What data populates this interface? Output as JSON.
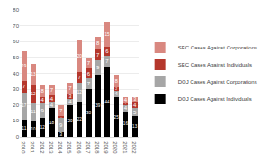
{
  "chart_data": {
    "type": "bar",
    "stacked": true,
    "data_labels": true,
    "grid": true,
    "legend": "right",
    "categories": [
      "2010",
      "2011",
      "2012",
      "2013",
      "2014",
      "2015",
      "2016",
      "2017",
      "2018",
      "2019",
      "2020",
      "2021",
      "2022"
    ],
    "ylim": [
      0,
      80
    ],
    "yticks": [
      0,
      10,
      20,
      30,
      40,
      50,
      60,
      70,
      80
    ],
    "series": [
      {
        "name": "DOJ Cases Against Individuals",
        "color": "#000000",
        "values": [
          11,
          10,
          12,
          18,
          3,
          20,
          22,
          30,
          39,
          44,
          25,
          16,
          13
        ]
      },
      {
        "name": "DOJ Cases Against Corporations",
        "color": "#a6a6a6",
        "values": [
          17,
          11,
          9,
          4,
          9,
          4,
          12,
          7,
          9,
          7,
          4,
          4,
          5
        ]
      },
      {
        "name": "SEC Cases Against Individuals",
        "color": "#b5372c",
        "values": [
          7,
          12,
          4,
          4,
          1,
          3,
          7,
          6,
          7,
          6,
          2,
          1,
          4
        ]
      },
      {
        "name": "SEC Cases Against Corporations",
        "color": "#d98880",
        "values": [
          19,
          13,
          8,
          7,
          7,
          7,
          20,
          7,
          8,
          15,
          8,
          4,
          3
        ]
      }
    ]
  }
}
